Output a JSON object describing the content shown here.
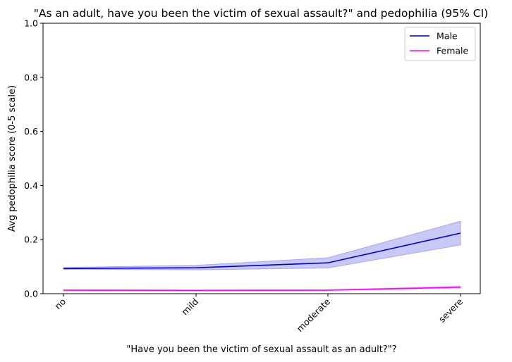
{
  "chart_data": {
    "type": "line",
    "title": "\"As an adult, have you been the victim of sexual assault?\" and pedophilia (95% CI)",
    "xlabel": "\"Have you been the victim of sexual assault as an adult?\"?",
    "ylabel": "Avg pedophilia score (0-5 scale)",
    "categories": [
      "no",
      "mild",
      "moderate",
      "severe"
    ],
    "ylim": [
      0,
      1.0
    ],
    "yticks": [
      0.0,
      0.2,
      0.4,
      0.6,
      0.8,
      1.0
    ],
    "ytick_labels": [
      "0.0",
      "0.2",
      "0.4",
      "0.6",
      "0.8",
      "1.0"
    ],
    "grid": false,
    "legend_position": "top-right",
    "series": [
      {
        "name": "Male",
        "color": "#0000cc",
        "band_color": "#7777ee",
        "values": [
          0.093,
          0.096,
          0.114,
          0.224
        ],
        "ci_low": [
          0.09,
          0.088,
          0.095,
          0.18
        ],
        "ci_high": [
          0.097,
          0.105,
          0.133,
          0.268
        ]
      },
      {
        "name": "Female",
        "color": "#ff00ff",
        "band_color": "#ff66ff",
        "values": [
          0.013,
          0.012,
          0.013,
          0.024
        ],
        "ci_low": [
          0.011,
          0.011,
          0.011,
          0.021
        ],
        "ci_high": [
          0.015,
          0.014,
          0.015,
          0.028
        ]
      }
    ]
  }
}
